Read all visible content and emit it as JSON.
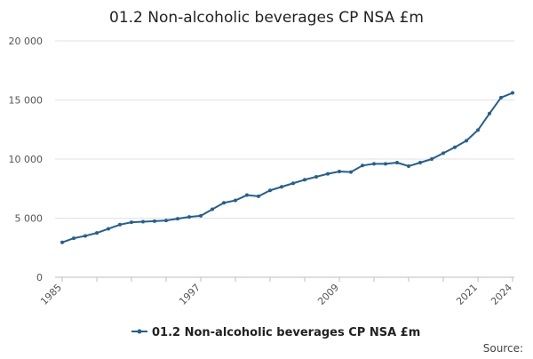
{
  "chart_data": {
    "type": "line",
    "title": "01.2 Non-alcoholic beverages CP NSA £m",
    "xlabel": "",
    "ylabel": "",
    "ylim": [
      0,
      20000
    ],
    "xlim": [
      1985,
      2024
    ],
    "y_ticks": [
      0,
      5000,
      10000,
      15000,
      20000
    ],
    "y_tick_labels": [
      "0",
      "5 000",
      "10 000",
      "15 000",
      "20 000"
    ],
    "x_minor_ticks": [
      1985,
      1988,
      1991,
      1994,
      1997,
      2000,
      2003,
      2006,
      2009,
      2012,
      2015,
      2018,
      2021,
      2024
    ],
    "x_tick_labels": [
      {
        "x": 1985,
        "label": "1985"
      },
      {
        "x": 1997,
        "label": "1997"
      },
      {
        "x": 2009,
        "label": "2009"
      },
      {
        "x": 2021,
        "label": "2021"
      },
      {
        "x": 2024,
        "label": "2024"
      }
    ],
    "grid": "horizontal",
    "legend_position": "bottom",
    "series_color": "#206095",
    "series": [
      {
        "name": "01.2 Non-alcoholic beverages CP NSA £m",
        "x": [
          1985,
          1986,
          1987,
          1988,
          1989,
          1990,
          1991,
          1992,
          1993,
          1994,
          1995,
          1996,
          1997,
          1998,
          1999,
          2000,
          2001,
          2002,
          2003,
          2004,
          2005,
          2006,
          2007,
          2008,
          2009,
          2010,
          2011,
          2012,
          2013,
          2014,
          2015,
          2016,
          2017,
          2018,
          2019,
          2020,
          2021,
          2022,
          2023,
          2024
        ],
        "values": [
          2950,
          3300,
          3500,
          3750,
          4100,
          4450,
          4650,
          4700,
          4750,
          4800,
          4950,
          5100,
          5200,
          5750,
          6300,
          6500,
          6950,
          6850,
          7350,
          7650,
          7950,
          8250,
          8500,
          8750,
          8950,
          8900,
          9450,
          9600,
          9600,
          9700,
          9400,
          9700,
          10000,
          10500,
          11000,
          11550,
          12450,
          13850,
          15200,
          15600
        ]
      }
    ]
  },
  "source_label": "Source:"
}
